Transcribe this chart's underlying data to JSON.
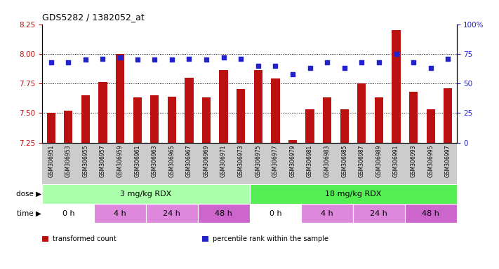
{
  "title": "GDS5282 / 1382052_at",
  "samples": [
    "GSM306951",
    "GSM306953",
    "GSM306955",
    "GSM306957",
    "GSM306959",
    "GSM306961",
    "GSM306963",
    "GSM306965",
    "GSM306967",
    "GSM306969",
    "GSM306971",
    "GSM306973",
    "GSM306975",
    "GSM306977",
    "GSM306979",
    "GSM306981",
    "GSM306983",
    "GSM306985",
    "GSM306987",
    "GSM306989",
    "GSM306991",
    "GSM306993",
    "GSM306995",
    "GSM306997"
  ],
  "transformed_count": [
    7.5,
    7.52,
    7.65,
    7.76,
    8.0,
    7.63,
    7.65,
    7.64,
    7.8,
    7.63,
    7.86,
    7.7,
    7.86,
    7.79,
    7.27,
    7.53,
    7.63,
    7.53,
    7.75,
    7.63,
    8.2,
    7.68,
    7.53,
    7.71
  ],
  "percentile_rank": [
    68,
    68,
    70,
    71,
    72,
    70,
    70,
    70,
    71,
    70,
    72,
    71,
    65,
    65,
    58,
    63,
    68,
    63,
    68,
    68,
    75,
    68,
    63,
    71
  ],
  "ylim_left": [
    7.25,
    8.25
  ],
  "ylim_right": [
    0,
    100
  ],
  "yticks_left": [
    7.25,
    7.5,
    7.75,
    8.0,
    8.25
  ],
  "yticks_right": [
    0,
    25,
    50,
    75,
    100
  ],
  "bar_color": "#bb1111",
  "dot_color": "#2222cc",
  "dose_groups": [
    {
      "label": "3 mg/kg RDX",
      "start": 0,
      "end": 12,
      "color": "#aaffaa"
    },
    {
      "label": "18 mg/kg RDX",
      "start": 12,
      "end": 24,
      "color": "#55ee55"
    }
  ],
  "time_groups": [
    {
      "label": "0 h",
      "start": 0,
      "end": 3,
      "color": "#ffffff"
    },
    {
      "label": "4 h",
      "start": 3,
      "end": 6,
      "color": "#dd88dd"
    },
    {
      "label": "24 h",
      "start": 6,
      "end": 9,
      "color": "#dd88dd"
    },
    {
      "label": "48 h",
      "start": 9,
      "end": 12,
      "color": "#cc66cc"
    },
    {
      "label": "0 h",
      "start": 12,
      "end": 15,
      "color": "#ffffff"
    },
    {
      "label": "4 h",
      "start": 15,
      "end": 18,
      "color": "#dd88dd"
    },
    {
      "label": "24 h",
      "start": 18,
      "end": 21,
      "color": "#dd88dd"
    },
    {
      "label": "48 h",
      "start": 21,
      "end": 24,
      "color": "#cc66cc"
    }
  ],
  "legend_entries": [
    {
      "color": "#bb1111",
      "label": "transformed count"
    },
    {
      "color": "#2222cc",
      "label": "percentile rank within the sample"
    }
  ],
  "xlabel_bg": "#cccccc"
}
